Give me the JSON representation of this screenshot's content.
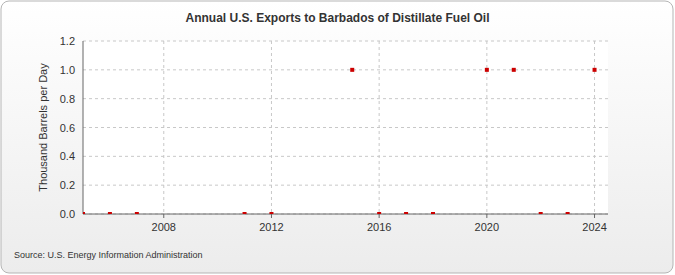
{
  "chart_data": {
    "type": "scatter",
    "title": "Annual U.S. Exports to Barbados of Distillate Fuel Oil",
    "y_label": "Thousand Barrels per Day",
    "source": "Source: U.S. Energy Information Administration",
    "x": [
      2005,
      2006,
      2007,
      2011,
      2012,
      2015,
      2016,
      2017,
      2018,
      2020,
      2021,
      2022,
      2023,
      2024
    ],
    "values": [
      0,
      0,
      0,
      0,
      0,
      1,
      0,
      0,
      0,
      1,
      1,
      0,
      0,
      1
    ],
    "color": "#cc0000",
    "marker": "square",
    "xlim": [
      2005,
      2024.5
    ],
    "xticks": [
      2008,
      2012,
      2016,
      2020,
      2024
    ],
    "ylim": [
      0,
      1.2
    ],
    "yticks": [
      {
        "value": 0,
        "label": "0.0"
      },
      0.2,
      0.4,
      0.6,
      0.8,
      {
        "value": 1,
        "label": "1.0"
      },
      1.2
    ],
    "grid": true
  }
}
